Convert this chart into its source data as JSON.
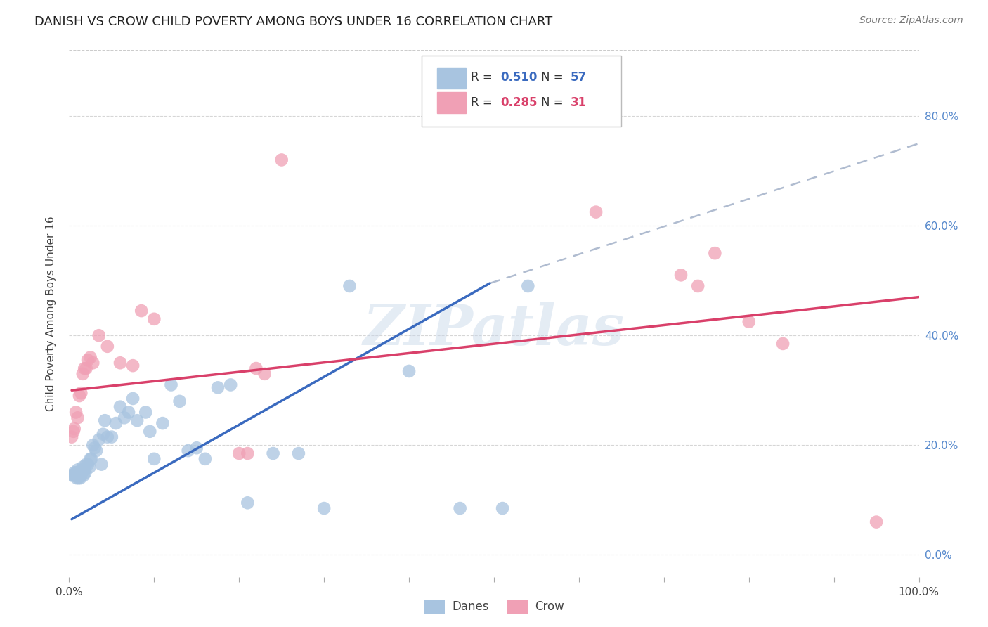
{
  "title": "DANISH VS CROW CHILD POVERTY AMONG BOYS UNDER 16 CORRELATION CHART",
  "source": "Source: ZipAtlas.com",
  "ylabel": "Child Poverty Among Boys Under 16",
  "xlim": [
    0.0,
    1.0
  ],
  "ylim": [
    -0.04,
    0.92
  ],
  "xtick_positions": [
    0.0,
    0.1,
    0.2,
    0.3,
    0.4,
    0.5,
    0.6,
    0.7,
    0.8,
    0.9,
    1.0
  ],
  "xtick_labels": [
    "0.0%",
    "",
    "",
    "",
    "",
    "",
    "",
    "",
    "",
    "",
    "100.0%"
  ],
  "ytick_positions": [
    0.0,
    0.2,
    0.4,
    0.6,
    0.8
  ],
  "ytick_labels": [
    "0.0%",
    "20.0%",
    "40.0%",
    "60.0%",
    "80.0%"
  ],
  "legend_blue_r": "0.510",
  "legend_blue_n": "57",
  "legend_pink_r": "0.285",
  "legend_pink_n": "31",
  "legend_label_blue": "Danes",
  "legend_label_pink": "Crow",
  "blue_color": "#a8c4e0",
  "blue_line_color": "#3a6abf",
  "pink_color": "#f0a0b5",
  "pink_line_color": "#d9406a",
  "dashed_line_color": "#b0bcd0",
  "watermark": "ZIPatlas",
  "blue_scatter_x": [
    0.003,
    0.005,
    0.006,
    0.007,
    0.008,
    0.009,
    0.01,
    0.01,
    0.011,
    0.012,
    0.013,
    0.014,
    0.015,
    0.016,
    0.017,
    0.018,
    0.019,
    0.02,
    0.022,
    0.024,
    0.025,
    0.026,
    0.028,
    0.03,
    0.032,
    0.035,
    0.038,
    0.04,
    0.042,
    0.045,
    0.05,
    0.055,
    0.06,
    0.065,
    0.07,
    0.075,
    0.08,
    0.09,
    0.095,
    0.1,
    0.11,
    0.12,
    0.13,
    0.14,
    0.15,
    0.16,
    0.175,
    0.19,
    0.21,
    0.24,
    0.27,
    0.3,
    0.33,
    0.4,
    0.46,
    0.51,
    0.54
  ],
  "blue_scatter_y": [
    0.145,
    0.145,
    0.15,
    0.145,
    0.15,
    0.14,
    0.155,
    0.145,
    0.14,
    0.15,
    0.14,
    0.145,
    0.155,
    0.16,
    0.145,
    0.155,
    0.15,
    0.165,
    0.165,
    0.16,
    0.175,
    0.175,
    0.2,
    0.195,
    0.19,
    0.21,
    0.165,
    0.22,
    0.245,
    0.215,
    0.215,
    0.24,
    0.27,
    0.25,
    0.26,
    0.285,
    0.245,
    0.26,
    0.225,
    0.175,
    0.24,
    0.31,
    0.28,
    0.19,
    0.195,
    0.175,
    0.305,
    0.31,
    0.095,
    0.185,
    0.185,
    0.085,
    0.49,
    0.335,
    0.085,
    0.085,
    0.49
  ],
  "pink_scatter_x": [
    0.003,
    0.005,
    0.006,
    0.008,
    0.01,
    0.012,
    0.014,
    0.016,
    0.018,
    0.02,
    0.022,
    0.025,
    0.028,
    0.035,
    0.045,
    0.06,
    0.075,
    0.085,
    0.1,
    0.2,
    0.21,
    0.22,
    0.23,
    0.25,
    0.62,
    0.72,
    0.74,
    0.76,
    0.8,
    0.84,
    0.95
  ],
  "pink_scatter_y": [
    0.215,
    0.225,
    0.23,
    0.26,
    0.25,
    0.29,
    0.295,
    0.33,
    0.34,
    0.34,
    0.355,
    0.36,
    0.35,
    0.4,
    0.38,
    0.35,
    0.345,
    0.445,
    0.43,
    0.185,
    0.185,
    0.34,
    0.33,
    0.72,
    0.625,
    0.51,
    0.49,
    0.55,
    0.425,
    0.385,
    0.06
  ],
  "blue_line_x": [
    0.003,
    0.495
  ],
  "blue_line_y": [
    0.065,
    0.495
  ],
  "pink_line_x": [
    0.003,
    1.0
  ],
  "pink_line_y": [
    0.3,
    0.47
  ],
  "dashed_line_x": [
    0.495,
    1.0
  ],
  "dashed_line_y": [
    0.495,
    0.75
  ]
}
